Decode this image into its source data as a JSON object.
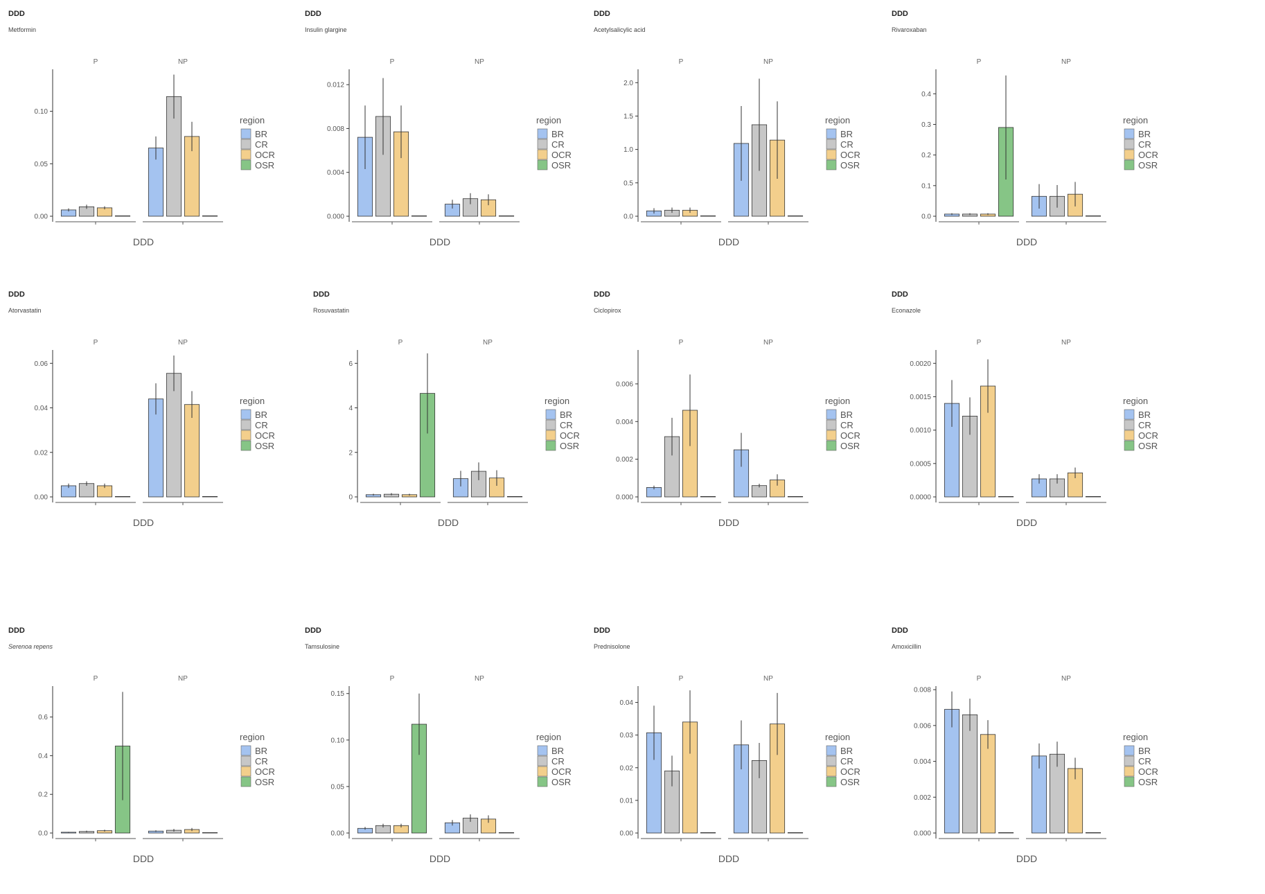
{
  "legend": {
    "title": "region",
    "items": [
      {
        "label": "BR",
        "color": "#a4c3f0"
      },
      {
        "label": "CR",
        "color": "#c7c7c7"
      },
      {
        "label": "OCR",
        "color": "#f3cf8c"
      },
      {
        "label": "OSR",
        "color": "#86c586"
      }
    ]
  },
  "panel_labels": {
    "tag": "DDD",
    "xlabel": "DDD"
  },
  "chart_data": [
    {
      "type": "bar",
      "title": "DDD",
      "subtitle": "Metformin",
      "italic": false,
      "facets": [
        "P",
        "NP"
      ],
      "categories": [
        "BR",
        "CR",
        "OCR",
        "OSR"
      ],
      "ylim": [
        0,
        0.14
      ],
      "yticks": [
        0.0,
        0.05,
        0.1
      ],
      "ytick_labels": [
        "0.00",
        "0.05",
        "0.10"
      ],
      "xlabel": "DDD",
      "series": [
        {
          "name": "P",
          "values": [
            0.006,
            0.009,
            0.008,
            0.0
          ],
          "errors": [
            0.0015,
            0.002,
            0.0015,
            0
          ]
        },
        {
          "name": "NP",
          "values": [
            0.065,
            0.114,
            0.076,
            0.0
          ],
          "errors": [
            0.011,
            0.021,
            0.014,
            0
          ]
        }
      ]
    },
    {
      "type": "bar",
      "title": "DDD",
      "subtitle": "Insulin glargine",
      "italic": false,
      "facets": [
        "P",
        "NP"
      ],
      "categories": [
        "BR",
        "CR",
        "OCR",
        "OSR"
      ],
      "ylim": [
        0,
        0.0134
      ],
      "yticks": [
        0.0,
        0.004,
        0.008,
        0.012
      ],
      "ytick_labels": [
        "0.000",
        "0.004",
        "0.008",
        "0.012"
      ],
      "xlabel": "DDD",
      "series": [
        {
          "name": "P",
          "values": [
            0.0072,
            0.0091,
            0.0077,
            0.0
          ],
          "errors": [
            0.0029,
            0.0035,
            0.0024,
            0
          ]
        },
        {
          "name": "NP",
          "values": [
            0.0011,
            0.0016,
            0.0015,
            0.0
          ],
          "errors": [
            0.0004,
            0.0005,
            0.0005,
            0
          ]
        }
      ]
    },
    {
      "type": "bar",
      "title": "DDD",
      "subtitle": "Acetylsalicylic acid",
      "italic": false,
      "facets": [
        "P",
        "NP"
      ],
      "categories": [
        "BR",
        "CR",
        "OCR",
        "OSR"
      ],
      "ylim": [
        0,
        2.2
      ],
      "yticks": [
        0.0,
        0.5,
        1.0,
        1.5,
        2.0
      ],
      "ytick_labels": [
        "0.0",
        "0.5",
        "1.0",
        "1.5",
        "2.0"
      ],
      "xlabel": "DDD",
      "series": [
        {
          "name": "P",
          "values": [
            0.08,
            0.09,
            0.09,
            0.0
          ],
          "errors": [
            0.04,
            0.04,
            0.04,
            0
          ]
        },
        {
          "name": "NP",
          "values": [
            1.09,
            1.37,
            1.14,
            0.0
          ],
          "errors": [
            0.56,
            0.69,
            0.58,
            0
          ]
        }
      ]
    },
    {
      "type": "bar",
      "title": "DDD",
      "subtitle": "Rivaroxaban",
      "italic": false,
      "facets": [
        "P",
        "NP"
      ],
      "categories": [
        "BR",
        "CR",
        "OCR",
        "OSR"
      ],
      "ylim": [
        0,
        0.48
      ],
      "yticks": [
        0.0,
        0.1,
        0.2,
        0.3,
        0.4
      ],
      "ytick_labels": [
        "0.0",
        "0.1",
        "0.2",
        "0.3",
        "0.4"
      ],
      "xlabel": "DDD",
      "series": [
        {
          "name": "P",
          "values": [
            0.007,
            0.007,
            0.007,
            0.29
          ],
          "errors": [
            0.003,
            0.003,
            0.003,
            0.17
          ]
        },
        {
          "name": "NP",
          "values": [
            0.065,
            0.065,
            0.072,
            0.0
          ],
          "errors": [
            0.04,
            0.037,
            0.04,
            0
          ]
        }
      ]
    },
    {
      "type": "bar",
      "title": "DDD",
      "subtitle": "Atorvastatin",
      "italic": false,
      "facets": [
        "P",
        "NP"
      ],
      "categories": [
        "BR",
        "CR",
        "OCR",
        "OSR"
      ],
      "ylim": [
        0,
        0.066
      ],
      "yticks": [
        0.0,
        0.02,
        0.04,
        0.06
      ],
      "ytick_labels": [
        "0.00",
        "0.02",
        "0.04",
        "0.06"
      ],
      "xlabel": "DDD",
      "series": [
        {
          "name": "P",
          "values": [
            0.005,
            0.006,
            0.005,
            0.0
          ],
          "errors": [
            0.001,
            0.001,
            0.001,
            0
          ]
        },
        {
          "name": "NP",
          "values": [
            0.044,
            0.0555,
            0.0415,
            0.0
          ],
          "errors": [
            0.007,
            0.008,
            0.006,
            0
          ]
        }
      ]
    },
    {
      "type": "bar",
      "title": "DDD",
      "subtitle": "Rosuvastatin",
      "italic": false,
      "facets": [
        "P",
        "NP"
      ],
      "categories": [
        "BR",
        "CR",
        "OCR",
        "OSR"
      ],
      "ylim": [
        0,
        6.6
      ],
      "yticks": [
        0,
        2,
        4,
        6
      ],
      "ytick_labels": [
        "0",
        "2",
        "4",
        "6"
      ],
      "xlabel": "DDD",
      "series": [
        {
          "name": "P",
          "values": [
            0.1,
            0.12,
            0.1,
            4.65
          ],
          "errors": [
            0.04,
            0.05,
            0.04,
            1.8
          ]
        },
        {
          "name": "NP",
          "values": [
            0.82,
            1.15,
            0.85,
            0.0
          ],
          "errors": [
            0.35,
            0.4,
            0.35,
            0
          ]
        }
      ]
    },
    {
      "type": "bar",
      "title": "DDD",
      "subtitle": "Ciclopirox",
      "italic": false,
      "facets": [
        "P",
        "NP"
      ],
      "categories": [
        "BR",
        "CR",
        "OCR",
        "OSR"
      ],
      "ylim": [
        0,
        0.0078
      ],
      "yticks": [
        0.0,
        0.002,
        0.004,
        0.006
      ],
      "ytick_labels": [
        "0.000",
        "0.002",
        "0.004",
        "0.006"
      ],
      "xlabel": "DDD",
      "series": [
        {
          "name": "P",
          "values": [
            0.0005,
            0.0032,
            0.0046,
            0.0
          ],
          "errors": [
            0.0001,
            0.001,
            0.0019,
            0
          ]
        },
        {
          "name": "NP",
          "values": [
            0.0025,
            0.0006,
            0.0009,
            0.0
          ],
          "errors": [
            0.0009,
            0.0001,
            0.0003,
            0
          ]
        }
      ]
    },
    {
      "type": "bar",
      "title": "DDD",
      "subtitle": "Econazole",
      "italic": false,
      "facets": [
        "P",
        "NP"
      ],
      "categories": [
        "BR",
        "CR",
        "OCR",
        "OSR"
      ],
      "ylim": [
        0,
        0.0022
      ],
      "yticks": [
        0.0,
        0.0005,
        0.001,
        0.0015,
        0.002
      ],
      "ytick_labels": [
        "0.0000",
        "0.0005",
        "0.0010",
        "0.0015",
        "0.0020"
      ],
      "xlabel": "DDD",
      "series": [
        {
          "name": "P",
          "values": [
            0.0014,
            0.00121,
            0.00166,
            0.0
          ],
          "errors": [
            0.00035,
            0.00028,
            0.0004,
            0
          ]
        },
        {
          "name": "NP",
          "values": [
            0.00027,
            0.00027,
            0.00036,
            0.0
          ],
          "errors": [
            7e-05,
            7e-05,
            8e-05,
            0
          ]
        }
      ]
    },
    {
      "type": "bar",
      "title": "DDD",
      "subtitle": "Serenoa repens",
      "italic": true,
      "facets": [
        "P",
        "NP"
      ],
      "categories": [
        "BR",
        "CR",
        "OCR",
        "OSR"
      ],
      "ylim": [
        0,
        0.76
      ],
      "yticks": [
        0.0,
        0.2,
        0.4,
        0.6
      ],
      "ytick_labels": [
        "0.0",
        "0.2",
        "0.4",
        "0.6"
      ],
      "xlabel": "DDD",
      "series": [
        {
          "name": "P",
          "values": [
            0.004,
            0.008,
            0.012,
            0.45
          ],
          "errors": [
            0.002,
            0.004,
            0.005,
            0.28
          ]
        },
        {
          "name": "NP",
          "values": [
            0.01,
            0.014,
            0.018,
            0.0
          ],
          "errors": [
            0.004,
            0.007,
            0.008,
            0
          ]
        }
      ]
    },
    {
      "type": "bar",
      "title": "DDD",
      "subtitle": "Tamsulosine",
      "italic": false,
      "facets": [
        "P",
        "NP"
      ],
      "categories": [
        "BR",
        "CR",
        "OCR",
        "OSR"
      ],
      "ylim": [
        0,
        0.158
      ],
      "yticks": [
        0.0,
        0.05,
        0.1,
        0.15
      ],
      "ytick_labels": [
        "0.00",
        "0.05",
        "0.10",
        "0.15"
      ],
      "xlabel": "DDD",
      "series": [
        {
          "name": "P",
          "values": [
            0.005,
            0.008,
            0.008,
            0.117
          ],
          "errors": [
            0.0015,
            0.002,
            0.002,
            0.033
          ]
        },
        {
          "name": "NP",
          "values": [
            0.011,
            0.016,
            0.015,
            0.0
          ],
          "errors": [
            0.003,
            0.004,
            0.004,
            0
          ]
        }
      ]
    },
    {
      "type": "bar",
      "title": "DDD",
      "subtitle": "Prednisolone",
      "italic": false,
      "facets": [
        "P",
        "NP"
      ],
      "categories": [
        "BR",
        "CR",
        "OCR",
        "OSR"
      ],
      "ylim": [
        0,
        0.045
      ],
      "yticks": [
        0.0,
        0.01,
        0.02,
        0.03,
        0.04
      ],
      "ytick_labels": [
        "0.00",
        "0.01",
        "0.02",
        "0.03",
        "0.04"
      ],
      "xlabel": "DDD",
      "series": [
        {
          "name": "P",
          "values": [
            0.0307,
            0.019,
            0.034,
            0.0
          ],
          "errors": [
            0.0083,
            0.0047,
            0.0097,
            0
          ]
        },
        {
          "name": "NP",
          "values": [
            0.027,
            0.0222,
            0.0334,
            0.0
          ],
          "errors": [
            0.0075,
            0.0054,
            0.0095,
            0
          ]
        }
      ]
    },
    {
      "type": "bar",
      "title": "DDD",
      "subtitle": "Amoxicillin",
      "italic": false,
      "facets": [
        "P",
        "NP"
      ],
      "categories": [
        "BR",
        "CR",
        "OCR",
        "OSR"
      ],
      "ylim": [
        0,
        0.0082
      ],
      "yticks": [
        0.0,
        0.002,
        0.004,
        0.006,
        0.008
      ],
      "ytick_labels": [
        "0.000",
        "0.002",
        "0.004",
        "0.006",
        "0.008"
      ],
      "xlabel": "DDD",
      "series": [
        {
          "name": "P",
          "values": [
            0.0069,
            0.0066,
            0.0055,
            0.0
          ],
          "errors": [
            0.001,
            0.0009,
            0.0008,
            0
          ]
        },
        {
          "name": "NP",
          "values": [
            0.0043,
            0.0044,
            0.0036,
            0.0
          ],
          "errors": [
            0.0007,
            0.0007,
            0.0006,
            0
          ]
        }
      ]
    }
  ]
}
